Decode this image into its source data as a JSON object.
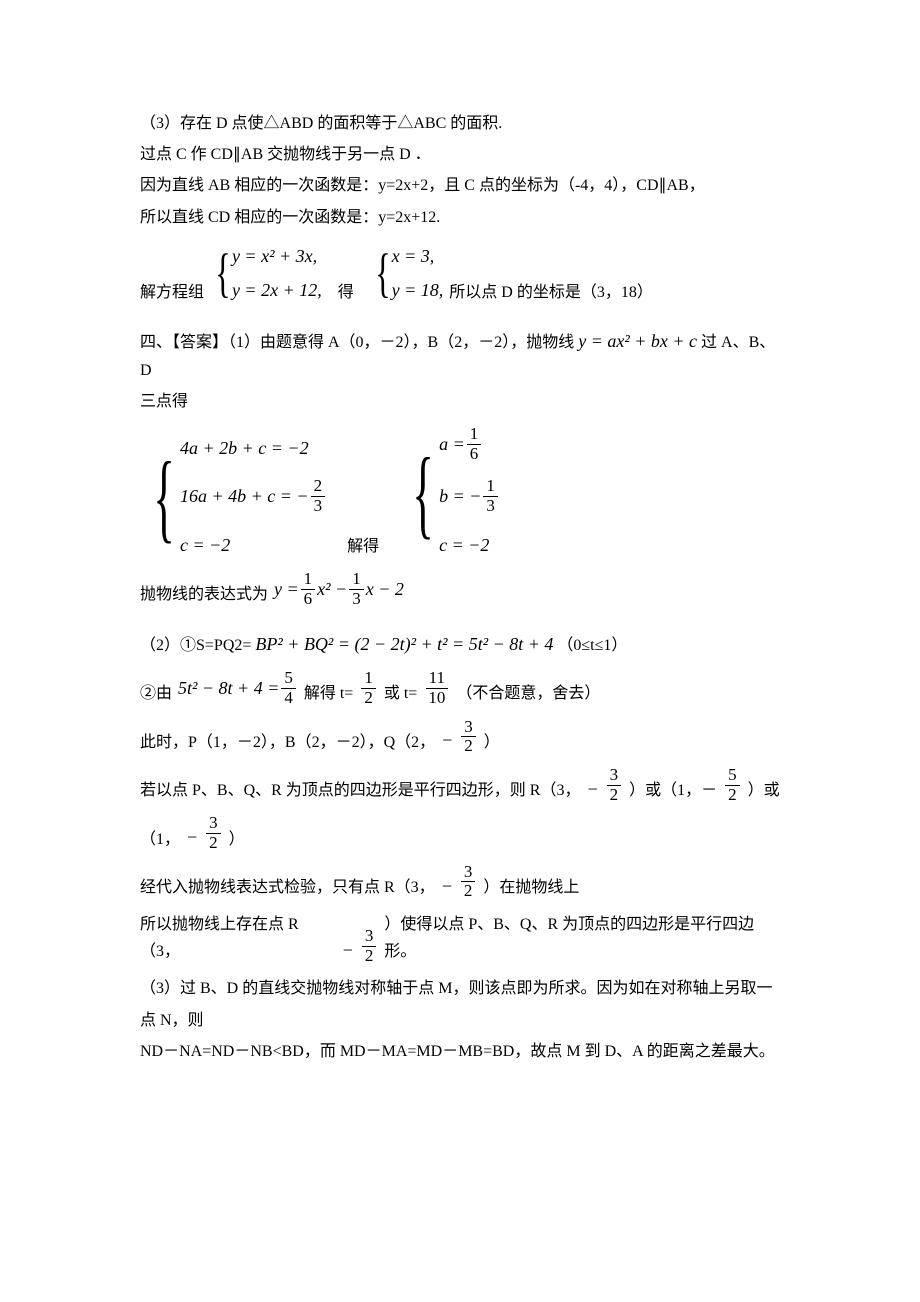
{
  "page": {
    "background_color": "#ffffff",
    "text_color": "#000000",
    "body_fontsize": 16,
    "math_fontsize": 18,
    "font_family_body": "SimSun",
    "font_family_math": "Times New Roman"
  },
  "p3": {
    "l1": "（3）存在 D 点使△ABD 的面积等于△ABC 的面积.",
    "l2": "过点 C 作 CD∥AB 交抛物线于另一点 D ．",
    "l3": "因为直线 AB 相应的一次函数是：y=2x+2，且 C 点的坐标为（-4，4），CD∥AB，",
    "l4": "所以直线 CD 相应的一次函数是：y=2x+12.",
    "sys_label_pre": "解方程组",
    "sys1_eq1": "y = x² + 3x,",
    "sys1_eq2": "y = 2x + 12,",
    "mid_word": "得",
    "sys2_eq1": "x = 3,",
    "sys2_eq2": "y = 18,",
    "tail": "所以点 D 的坐标是（3，18）"
  },
  "p4": {
    "h_pre": "四、【答案】（1）由题意得 A（0，－2），B（2，－2），抛物线",
    "h_math": "y = ax² + bx + c",
    "h_post": "过 A、B、D",
    "h_line2": "三点得",
    "sysA_eq1": "4a + 2b + c = −2",
    "sysA_eq2_pre": "16a + 4b + c = −",
    "sysA_eq2_frac_num": "2",
    "sysA_eq2_frac_den": "3",
    "sysA_eq3": "c = −2",
    "mid_word": "解得",
    "sysB_eq1_pre": "a = ",
    "sysB_eq1_num": "1",
    "sysB_eq1_den": "6",
    "sysB_eq2_pre": "b = −",
    "sysB_eq2_num": "1",
    "sysB_eq2_den": "3",
    "sysB_eq3": "c = −2",
    "expr_label": "抛物线的表达式为",
    "expr_y": "y = ",
    "expr_f1_num": "1",
    "expr_f1_den": "6",
    "expr_mid1": "x² − ",
    "expr_f2_num": "1",
    "expr_f2_den": "3",
    "expr_mid2": "x − 2",
    "p2_1_pre": "（2）①S=PQ2=",
    "p2_1_math": "BP² + BQ² = (2 − 2t)² + t² = 5t² − 8t + 4",
    "p2_1_post": "（0≤t≤1）",
    "p2_2_pre": "②由",
    "p2_2_lhs": "5t² − 8t + 4 = ",
    "p2_2_rhs_num": "5",
    "p2_2_rhs_den": "4",
    "p2_2_mid": "解得 t=",
    "p2_2_t1_num": "1",
    "p2_2_t1_den": "2",
    "p2_2_or": " 或 t=",
    "p2_2_t2_num": "11",
    "p2_2_t2_den": "10",
    "p2_2_tail": "（不合题意，舍去）",
    "pts_pre": "此时，P（1，－2），B（2，－2），Q（2，",
    "pts_neg": "−",
    "pts_num": "3",
    "pts_den": "2",
    "pts_post": "）",
    "para_r_pre": "若以点 P、B、Q、R 为顶点的四边形是平行四边形，则 R（3，",
    "para_r_neg": "−",
    "para_r_num": "3",
    "para_r_den": "2",
    "para_r_mid1": "）或（1，－",
    "para_r2_num": "5",
    "para_r2_den": "2",
    "para_r_mid2": "）或",
    "para_r3_pre": "（1，",
    "para_r3_neg": "−",
    "para_r3_num": "3",
    "para_r3_den": "2",
    "para_r3_post": "）",
    "check_pre": "经代入抛物线表达式检验，只有点 R（3，",
    "check_neg": "−",
    "check_num": "3",
    "check_den": "2",
    "check_post": "）在抛物线上",
    "concl_pre": "所以抛物线上存在点 R（3，",
    "concl_neg": "−",
    "concl_num": "3",
    "concl_den": "2",
    "concl_post": "）使得以点 P、B、Q、R 为顶点的四边形是平行四边形。",
    "p3_l1": "（3）过 B、D 的直线交抛物线对称轴于点 M，则该点即为所求。因为如在对称轴上另取一",
    "p3_l2": "点 N，则",
    "p3_l3": "ND－NA=ND－NB<BD，而 MD－MA=MD－MB=BD，故点 M 到 D、A 的距离之差最大。"
  }
}
